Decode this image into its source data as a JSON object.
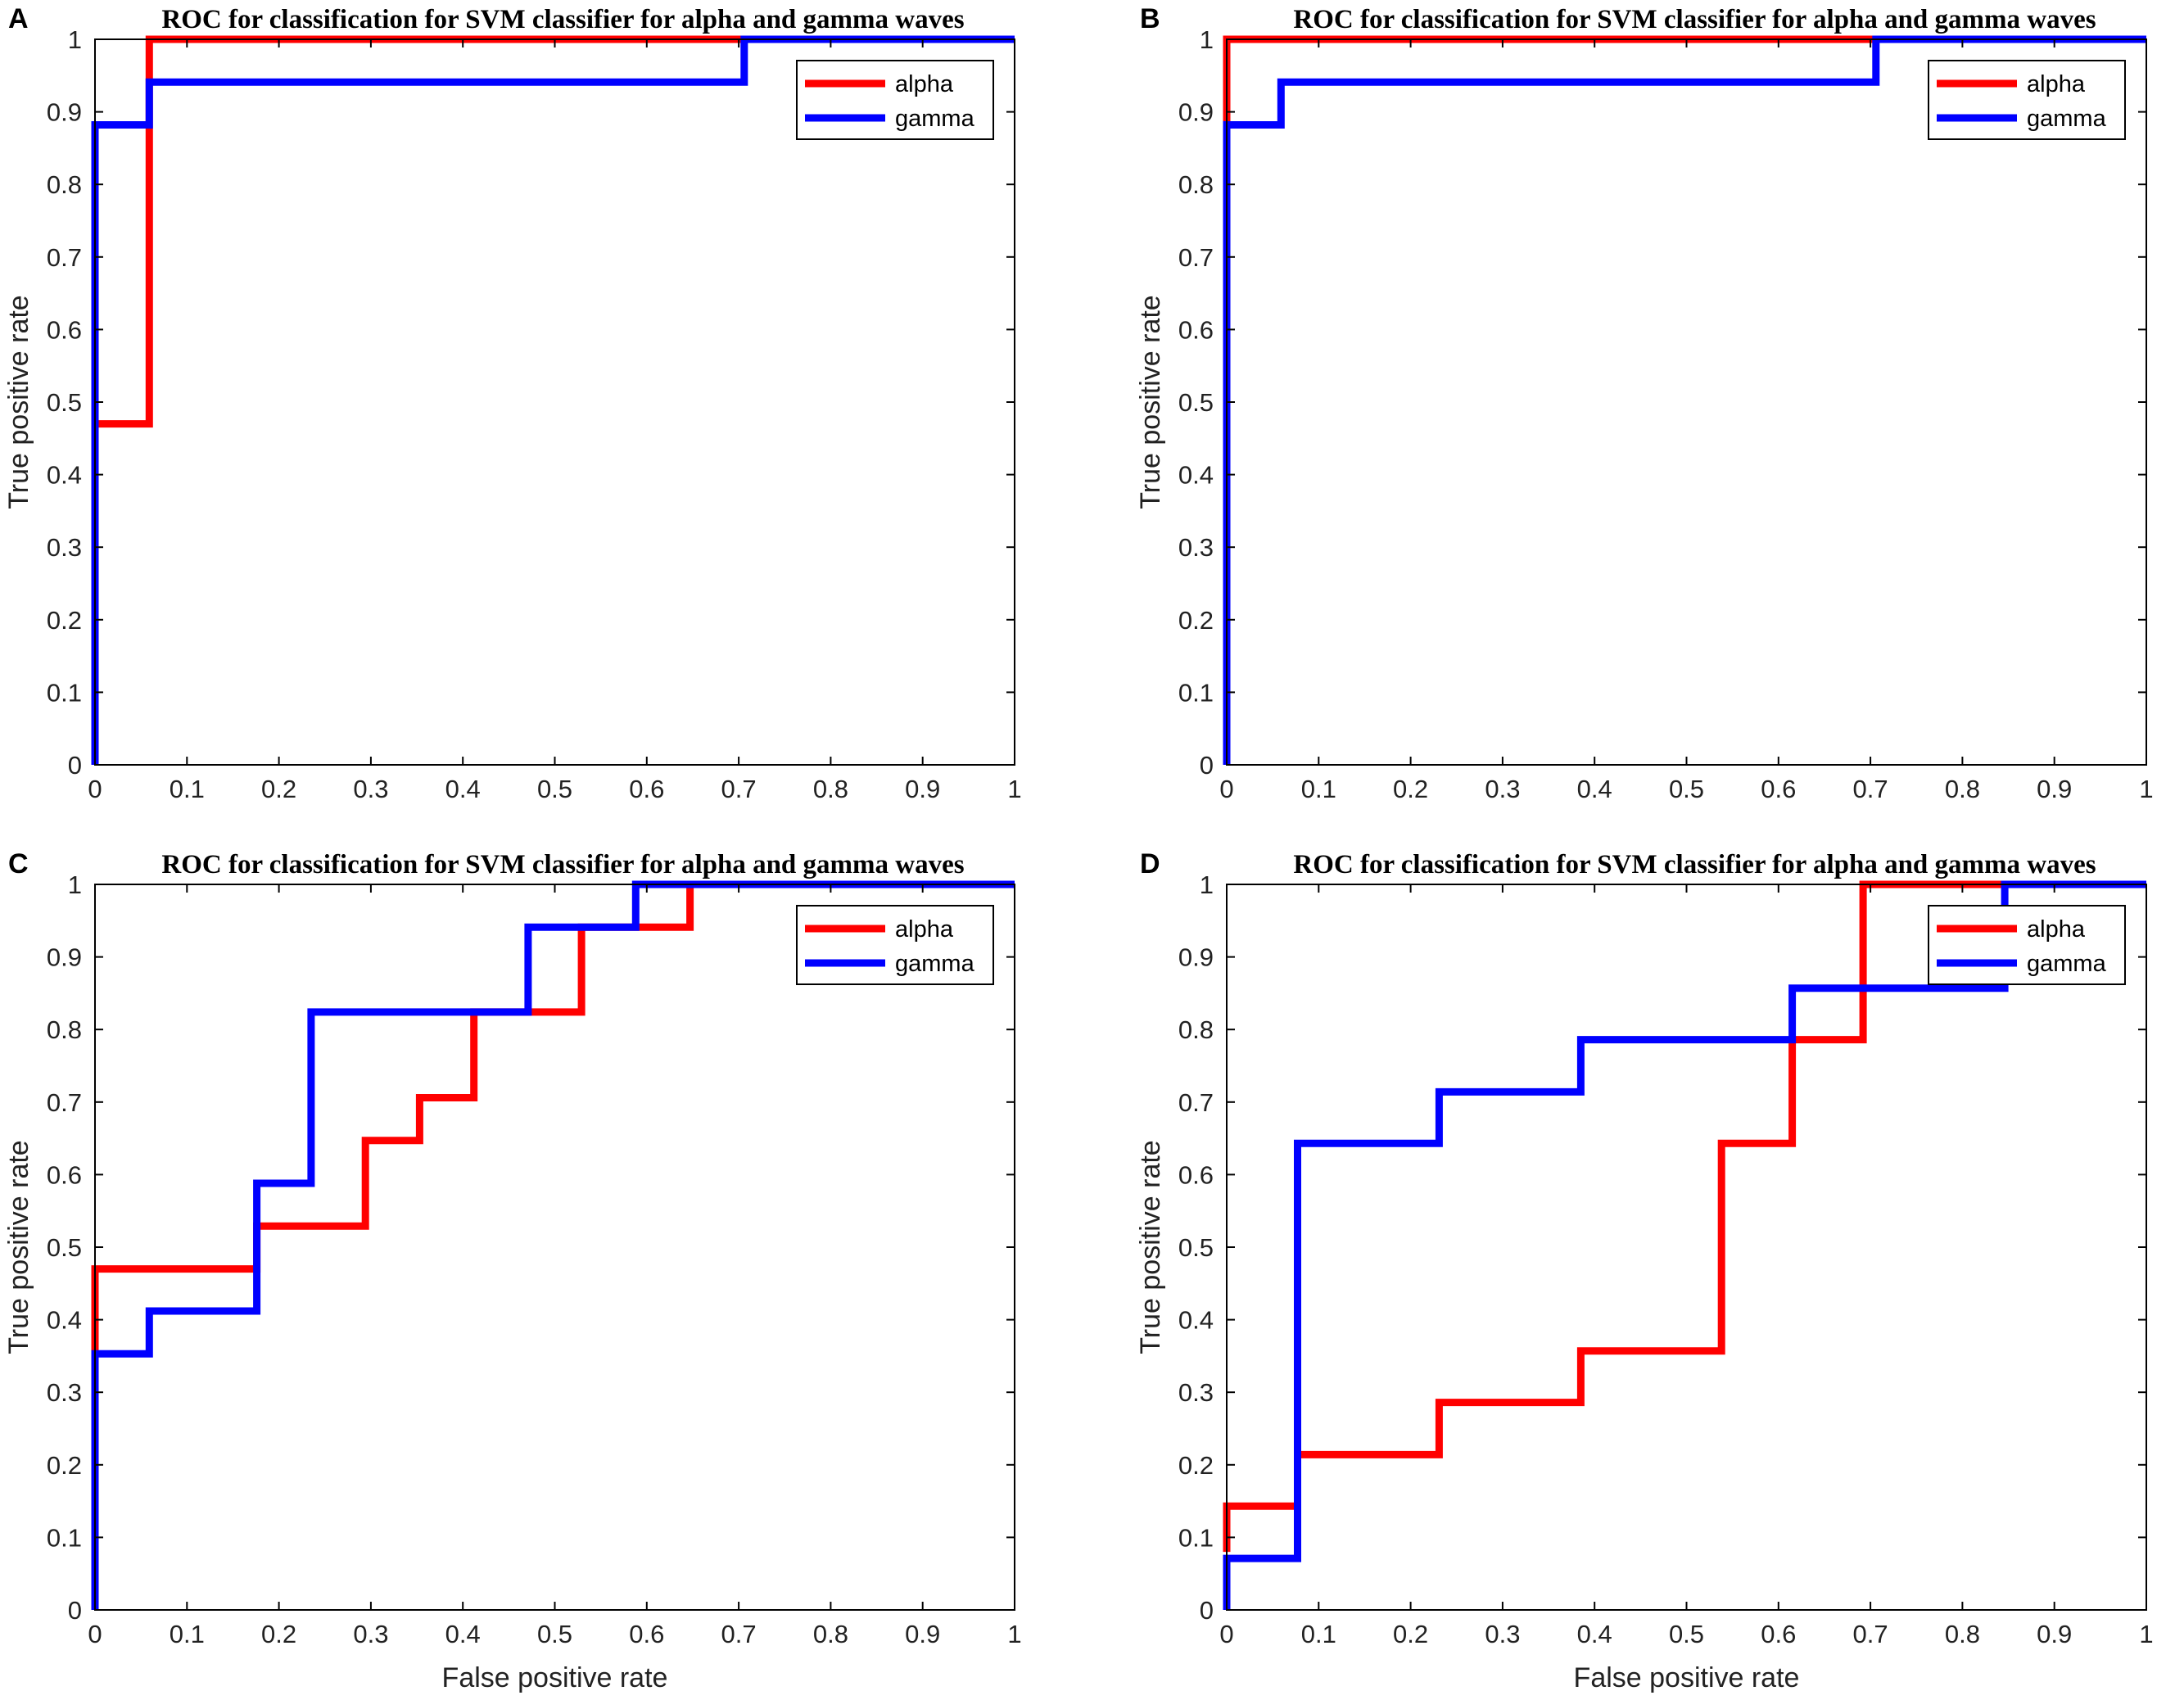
{
  "chart_data": [
    {
      "panel": "A",
      "type": "line",
      "title": "ROC for classification for SVM classifier for alpha and gamma waves",
      "xlabel": "",
      "ylabel": "True positive rate",
      "xlim": [
        0,
        1
      ],
      "ylim": [
        0,
        1
      ],
      "xticks": [
        "0",
        "0.1",
        "0.2",
        "0.3",
        "0.4",
        "0.5",
        "0.6",
        "0.7",
        "0.8",
        "0.9",
        "1"
      ],
      "yticks": [
        "0",
        "0.1",
        "0.2",
        "0.3",
        "0.4",
        "0.5",
        "0.6",
        "0.7",
        "0.8",
        "0.9",
        "1"
      ],
      "legend": [
        "alpha",
        "gamma"
      ],
      "series": [
        {
          "name": "alpha",
          "color": "#ff0000",
          "x": [
            0,
            0,
            0,
            0.059,
            0.059,
            1
          ],
          "y": [
            0,
            0.47,
            0.47,
            0.47,
            1,
            1
          ]
        },
        {
          "name": "gamma",
          "color": "#0000ff",
          "x": [
            0,
            0,
            0.059,
            0.059,
            0.706,
            0.706,
            1
          ],
          "y": [
            0,
            0.882,
            0.882,
            0.941,
            0.941,
            1,
            1
          ]
        }
      ]
    },
    {
      "panel": "B",
      "type": "line",
      "title": "ROC for classification for SVM classifier for alpha and gamma waves",
      "xlabel": "",
      "ylabel": "True positive rate",
      "xlim": [
        0,
        1
      ],
      "ylim": [
        0,
        1
      ],
      "xticks": [
        "0",
        "0.1",
        "0.2",
        "0.3",
        "0.4",
        "0.5",
        "0.6",
        "0.7",
        "0.8",
        "0.9",
        "1"
      ],
      "yticks": [
        "0",
        "0.1",
        "0.2",
        "0.3",
        "0.4",
        "0.5",
        "0.6",
        "0.7",
        "0.8",
        "0.9",
        "1"
      ],
      "legend": [
        "alpha",
        "gamma"
      ],
      "series": [
        {
          "name": "alpha",
          "color": "#ff0000",
          "x": [
            0,
            0,
            1
          ],
          "y": [
            0.88,
            1,
            1
          ]
        },
        {
          "name": "gamma",
          "color": "#0000ff",
          "x": [
            0,
            0,
            0.059,
            0.059,
            0.706,
            0.706,
            1
          ],
          "y": [
            0,
            0.882,
            0.882,
            0.941,
            0.941,
            1,
            1
          ]
        }
      ]
    },
    {
      "panel": "C",
      "type": "line",
      "title": "ROC for classification for SVM classifier for alpha and gamma waves",
      "xlabel": "False positive rate",
      "ylabel": "True positive rate",
      "xlim": [
        0,
        1
      ],
      "ylim": [
        0,
        1
      ],
      "xticks": [
        "0",
        "0.1",
        "0.2",
        "0.3",
        "0.4",
        "0.5",
        "0.6",
        "0.7",
        "0.8",
        "0.9",
        "1"
      ],
      "yticks": [
        "0",
        "0.1",
        "0.2",
        "0.3",
        "0.4",
        "0.5",
        "0.6",
        "0.7",
        "0.8",
        "0.9",
        "1"
      ],
      "legend": [
        "alpha",
        "gamma"
      ],
      "series": [
        {
          "name": "alpha",
          "color": "#ff0000",
          "x": [
            0,
            0,
            0.176,
            0.176,
            0.294,
            0.294,
            0.353,
            0.353,
            0.412,
            0.412,
            0.471,
            0.471,
            0.529,
            0.529,
            0.588,
            0.588,
            0.647,
            0.647,
            1
          ],
          "y": [
            0.353,
            0.47,
            0.47,
            0.529,
            0.529,
            0.647,
            0.647,
            0.706,
            0.706,
            0.824,
            0.824,
            0.824,
            0.824,
            0.941,
            0.941,
            0.941,
            0.941,
            1,
            1
          ]
        },
        {
          "name": "gamma",
          "color": "#0000ff",
          "x": [
            0,
            0,
            0.059,
            0.059,
            0.176,
            0.176,
            0.235,
            0.235,
            0.471,
            0.471,
            0.588,
            0.588,
            1
          ],
          "y": [
            0,
            0.353,
            0.353,
            0.412,
            0.412,
            0.588,
            0.588,
            0.824,
            0.824,
            0.941,
            0.941,
            1,
            1
          ]
        }
      ]
    },
    {
      "panel": "D",
      "type": "line",
      "title": "ROC for classification for SVM classifier for alpha and gamma waves",
      "xlabel": "False positive rate",
      "ylabel": "True positive rate",
      "xlim": [
        0,
        1
      ],
      "ylim": [
        0,
        1
      ],
      "xticks": [
        "0",
        "0.1",
        "0.2",
        "0.3",
        "0.4",
        "0.5",
        "0.6",
        "0.7",
        "0.8",
        "0.9",
        "1"
      ],
      "yticks": [
        "0",
        "0.1",
        "0.2",
        "0.3",
        "0.4",
        "0.5",
        "0.6",
        "0.7",
        "0.8",
        "0.9",
        "1"
      ],
      "legend": [
        "alpha",
        "gamma"
      ],
      "series": [
        {
          "name": "alpha",
          "color": "#ff0000",
          "x": [
            0,
            0,
            0.077,
            0.077,
            0.231,
            0.231,
            0.385,
            0.385,
            0.538,
            0.538,
            0.615,
            0.615,
            0.692,
            0.692,
            1
          ],
          "y": [
            0.08,
            0.143,
            0.143,
            0.214,
            0.214,
            0.286,
            0.286,
            0.357,
            0.357,
            0.643,
            0.643,
            0.786,
            0.786,
            1,
            1
          ]
        },
        {
          "name": "gamma",
          "color": "#0000ff",
          "x": [
            0,
            0,
            0.077,
            0.077,
            0.231,
            0.231,
            0.385,
            0.385,
            0.615,
            0.615,
            0.846,
            0.846,
            1
          ],
          "y": [
            0,
            0.071,
            0.071,
            0.643,
            0.643,
            0.714,
            0.714,
            0.786,
            0.786,
            0.857,
            0.857,
            1,
            1
          ]
        }
      ]
    }
  ]
}
